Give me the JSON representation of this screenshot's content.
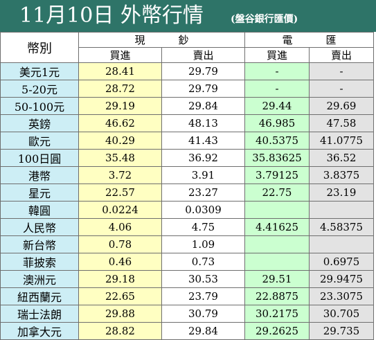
{
  "header": {
    "title": "11月10日 外幣行情",
    "subtitle": "(盤谷銀行匯價)"
  },
  "table": {
    "currency_header": "幣別",
    "group_cash": "現鈔",
    "group_wire": "電匯",
    "buy_label": "買進",
    "sell_label": "賣出",
    "rows": [
      {
        "currency": "美元1元",
        "cash_buy": "28.41",
        "cash_sell": "29.79",
        "wire_buy": "-",
        "wire_sell": "-"
      },
      {
        "currency": "5-20元",
        "cash_buy": "28.72",
        "cash_sell": "29.79",
        "wire_buy": "-",
        "wire_sell": "-"
      },
      {
        "currency": "50-100元",
        "cash_buy": "29.19",
        "cash_sell": "29.84",
        "wire_buy": "29.44",
        "wire_sell": "29.69"
      },
      {
        "currency": "英鎊",
        "cash_buy": "46.62",
        "cash_sell": "48.13",
        "wire_buy": "46.985",
        "wire_sell": "47.58"
      },
      {
        "currency": "歐元",
        "cash_buy": "40.29",
        "cash_sell": "41.43",
        "wire_buy": "40.5375",
        "wire_sell": "41.0775"
      },
      {
        "currency": "100日圓",
        "cash_buy": "35.48",
        "cash_sell": "36.92",
        "wire_buy": "35.83625",
        "wire_sell": "36.52"
      },
      {
        "currency": "港幣",
        "cash_buy": "3.72",
        "cash_sell": "3.91",
        "wire_buy": "3.79125",
        "wire_sell": "3.8375"
      },
      {
        "currency": "星元",
        "cash_buy": "22.57",
        "cash_sell": "23.27",
        "wire_buy": "22.75",
        "wire_sell": "23.19"
      },
      {
        "currency": "韓圓",
        "cash_buy": "0.0224",
        "cash_sell": "0.0309",
        "wire_buy": "",
        "wire_sell": ""
      },
      {
        "currency": "人民幣",
        "cash_buy": "4.06",
        "cash_sell": "4.75",
        "wire_buy": "4.41625",
        "wire_sell": "4.58375"
      },
      {
        "currency": "新台幣",
        "cash_buy": "0.78",
        "cash_sell": "1.09",
        "wire_buy": "",
        "wire_sell": ""
      },
      {
        "currency": "菲披索",
        "cash_buy": "0.46",
        "cash_sell": "0.73",
        "wire_buy": "",
        "wire_sell": "0.6975"
      },
      {
        "currency": "澳洲元",
        "cash_buy": "29.18",
        "cash_sell": "30.53",
        "wire_buy": "29.51",
        "wire_sell": "29.9475"
      },
      {
        "currency": "紐西蘭元",
        "cash_buy": "22.65",
        "cash_sell": "23.79",
        "wire_buy": "22.8875",
        "wire_sell": "23.3075"
      },
      {
        "currency": "瑞士法朗",
        "cash_buy": "29.88",
        "cash_sell": "30.79",
        "wire_buy": "30.2175",
        "wire_sell": "30.705"
      },
      {
        "currency": "加拿大元",
        "cash_buy": "28.82",
        "cash_sell": "29.84",
        "wire_buy": "29.2625",
        "wire_sell": "29.735"
      }
    ]
  },
  "colors": {
    "header_bg": "#2e7468",
    "currency_col": "#cdeef5",
    "cash_buy_col": "#ffffc2",
    "wire_buy_col": "#cbffd0",
    "wire_sell_col": "#e3e3e3"
  }
}
